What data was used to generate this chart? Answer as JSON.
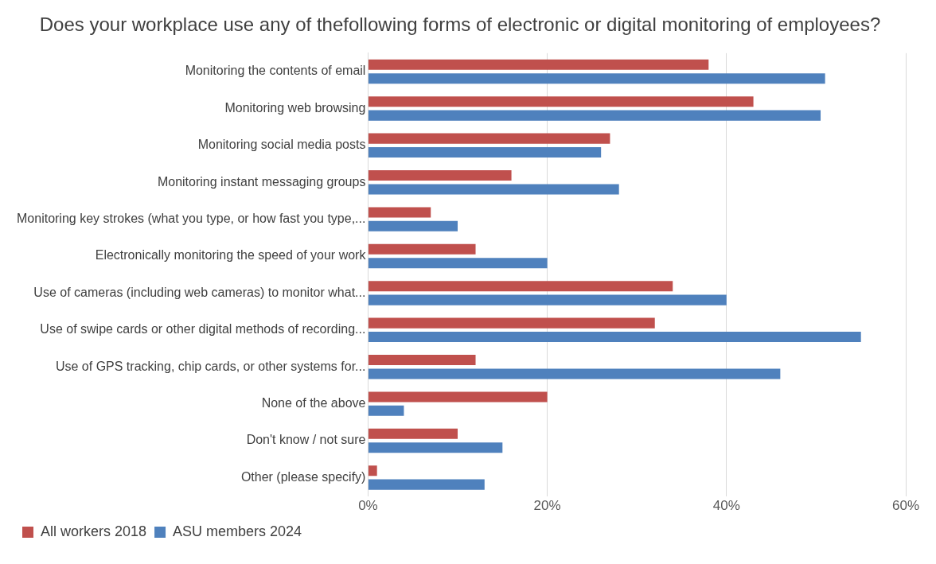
{
  "chart_data": {
    "type": "bar",
    "orientation": "horizontal",
    "title": "Does your workplace use any of thefollowing forms of electronic or digital monitoring of employees?",
    "categories": [
      "Monitoring the contents of email",
      "Monitoring web browsing",
      "Monitoring social media posts",
      "Monitoring instant messaging groups",
      "Monitoring key strokes (what you type, or how fast you type,...",
      "Electronically monitoring the speed of your work",
      "Use of cameras (including web cameras) to monitor what...",
      "Use of swipe cards or other digital methods of recording...",
      "Use of GPS tracking, chip cards, or other systems for...",
      "None of the above",
      "Don't know / not sure",
      "Other (please specify)"
    ],
    "series": [
      {
        "name": "All workers 2018",
        "color": "#c0504d",
        "values": [
          38,
          43,
          27,
          16,
          7,
          12,
          34,
          32,
          12,
          20,
          10,
          1
        ]
      },
      {
        "name": "ASU members 2024",
        "color": "#4f81bd",
        "values": [
          51,
          50.5,
          26,
          28,
          10,
          20,
          40,
          55,
          46,
          4,
          15,
          13
        ]
      }
    ],
    "xlim": [
      0,
      60
    ],
    "xticks": [
      {
        "value": 0,
        "label": "0%"
      },
      {
        "value": 20,
        "label": "20%"
      },
      {
        "value": 40,
        "label": "40%"
      },
      {
        "value": 60,
        "label": "60%"
      }
    ],
    "grid": "x",
    "legend": "bottom left"
  }
}
